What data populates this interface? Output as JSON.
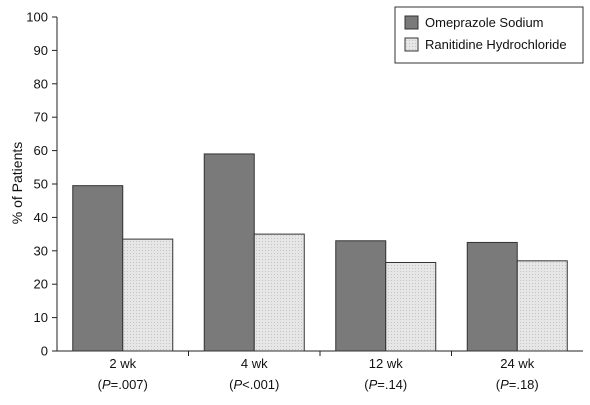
{
  "chart_data": {
    "type": "bar",
    "title": "",
    "xlabel": "",
    "ylabel": "% of Patients",
    "ylim": [
      0,
      100
    ],
    "yticks": [
      0,
      10,
      20,
      30,
      40,
      50,
      60,
      70,
      80,
      90,
      100
    ],
    "categories": [
      {
        "label": "2 wk",
        "p_label": "(P=.007)",
        "p_italic": "P",
        "p_rest": "=.007"
      },
      {
        "label": "4 wk",
        "p_label": "(P<.001)",
        "p_italic": "P",
        "p_rest": "<.001"
      },
      {
        "label": "12 wk",
        "p_label": "(P=.14)",
        "p_italic": "P",
        "p_rest": "=.14"
      },
      {
        "label": "24 wk",
        "p_label": "(P=.18)",
        "p_italic": "P",
        "p_rest": "=.18"
      }
    ],
    "series": [
      {
        "name": "Omeprazole Sodium",
        "values": [
          49.5,
          59,
          33,
          32.5
        ],
        "color": "#7a7a7a"
      },
      {
        "name": "Ranitidine Hydrochloride",
        "values": [
          33.5,
          35,
          26.5,
          27
        ],
        "color": "#e4e4e4"
      }
    ],
    "grid": false,
    "legend_position": "top-right"
  }
}
